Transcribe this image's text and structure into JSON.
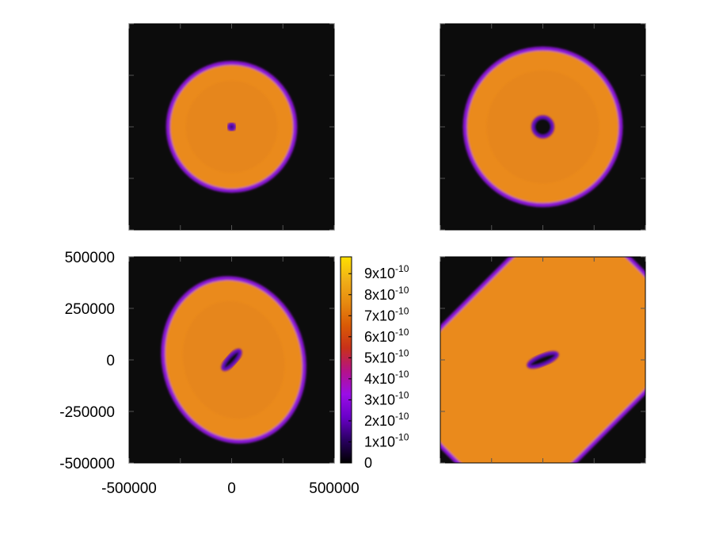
{
  "chart_data": [
    {
      "type": "heatmap",
      "panel": "top-left",
      "xlim": [
        -500000,
        500000
      ],
      "ylim": [
        -500000,
        500000
      ],
      "field": "disk with tiny central hole",
      "outer_radius_x": 310000,
      "outer_radius_y": 310000,
      "outer_center": [
        0,
        0
      ],
      "outer_tilt_deg": 0,
      "hole_radius_x": 14000,
      "hole_radius_y": 14000,
      "hole_center": [
        0,
        0
      ],
      "hole_tilt_deg": 0,
      "fill_value": 7.8e-10
    },
    {
      "type": "heatmap",
      "panel": "top-right",
      "xlim": [
        -500000,
        500000
      ],
      "ylim": [
        -500000,
        500000
      ],
      "field": "disk with small central hole",
      "outer_radius_x": 380000,
      "outer_radius_y": 380000,
      "outer_center": [
        0,
        0
      ],
      "outer_tilt_deg": 0,
      "hole_radius_x": 48000,
      "hole_radius_y": 48000,
      "hole_center": [
        0,
        0
      ],
      "hole_tilt_deg": 0,
      "fill_value": 7.8e-10
    },
    {
      "type": "heatmap",
      "panel": "bottom-left",
      "xlim": [
        -500000,
        500000
      ],
      "ylim": [
        -500000,
        500000
      ],
      "xticks": [
        "-500000",
        "0",
        "500000"
      ],
      "yticks": [
        "500000",
        "250000",
        "0",
        "-250000",
        "-500000"
      ],
      "field": "tilted oval disk with elongated hole",
      "outer_radius_x": 340000,
      "outer_radius_y": 400000,
      "outer_center": [
        10000,
        0
      ],
      "outer_tilt_deg": -15,
      "hole_radius_x": 60000,
      "hole_radius_y": 20000,
      "hole_center": [
        0,
        0
      ],
      "hole_tilt_deg": -48,
      "fill_value": 7.8e-10
    },
    {
      "type": "heatmap",
      "panel": "bottom-right",
      "xlim": [
        -500000,
        500000
      ],
      "ylim": [
        -500000,
        500000
      ],
      "field": "rotated rounded disk with elongated hole",
      "outer_center": [
        0,
        0
      ],
      "outer_tilt_deg": -45,
      "hole_radius_x": 75000,
      "hole_radius_y": 22000,
      "hole_center": [
        0,
        0
      ],
      "hole_tilt_deg": -22,
      "fill_value": 7.8e-10
    }
  ],
  "colorbar": {
    "range": [
      0,
      9.8e-10
    ],
    "labels": [
      {
        "mantissa": "9x10",
        "exp": "-10",
        "value": 9e-10
      },
      {
        "mantissa": "8x10",
        "exp": "-10",
        "value": 8e-10
      },
      {
        "mantissa": "7x10",
        "exp": "-10",
        "value": 7e-10
      },
      {
        "mantissa": "6x10",
        "exp": "-10",
        "value": 6e-10
      },
      {
        "mantissa": "5x10",
        "exp": "-10",
        "value": 5e-10
      },
      {
        "mantissa": "4x10",
        "exp": "-10",
        "value": 4e-10
      },
      {
        "mantissa": "3x10",
        "exp": "-10",
        "value": 3e-10
      },
      {
        "mantissa": "2x10",
        "exp": "-10",
        "value": 2e-10
      },
      {
        "mantissa": "1x10",
        "exp": "-10",
        "value": 1e-10
      },
      {
        "mantissa": "0",
        "exp": "",
        "value": 0
      }
    ],
    "palette": [
      "#000000",
      "#2a0062",
      "#6a00c9",
      "#9a0ee6",
      "#b4128a",
      "#c8301a",
      "#d95a06",
      "#e78a10",
      "#f0b018",
      "#ffe000"
    ]
  },
  "colors": {
    "background": "#0c0c0c",
    "disk": "#ea8a1e",
    "disk_inner": "#e3831c",
    "rim": "#8a18d6",
    "rim_inner": "#6608c2"
  }
}
